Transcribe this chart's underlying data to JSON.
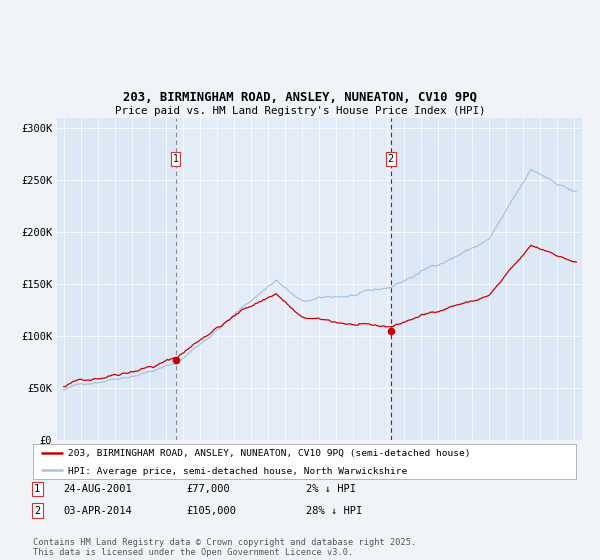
{
  "title1": "203, BIRMINGHAM ROAD, ANSLEY, NUNEATON, CV10 9PQ",
  "title2": "Price paid vs. HM Land Registry's House Price Index (HPI)",
  "legend1": "203, BIRMINGHAM ROAD, ANSLEY, NUNEATON, CV10 9PQ (semi-detached house)",
  "legend2": "HPI: Average price, semi-detached house, North Warwickshire",
  "sale1_date": "24-AUG-2001",
  "sale1_price": 77000,
  "sale1_pct": "2% ↓ HPI",
  "sale2_date": "03-APR-2014",
  "sale2_price": 105000,
  "sale2_pct": "28% ↓ HPI",
  "footnote": "Contains HM Land Registry data © Crown copyright and database right 2025.\nThis data is licensed under the Open Government Licence v3.0.",
  "hpi_color": "#a8c4e0",
  "price_color": "#cc0000",
  "bg_chart": "#dce8f5",
  "bg_outside": "#f0f4f8",
  "vline1_color": "#888888",
  "vline2_color": "#cc0000",
  "ylim": [
    0,
    310000
  ],
  "yticks": [
    0,
    50000,
    100000,
    150000,
    200000,
    250000,
    300000
  ],
  "ytick_labels": [
    "£0",
    "£50K",
    "£100K",
    "£150K",
    "£200K",
    "£250K",
    "£300K"
  ]
}
